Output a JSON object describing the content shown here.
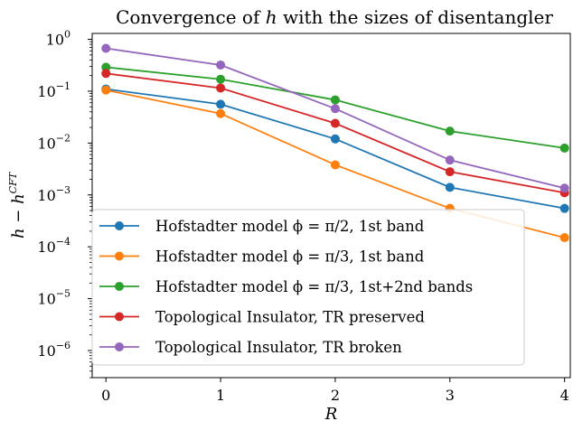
{
  "chart_data": {
    "type": "line",
    "title": "Convergence of h with the sizes of disentangler",
    "title_parts": {
      "before": "Convergence of ",
      "var": "h",
      "after": " with the sizes of disentangler"
    },
    "xlabel": "R",
    "ylabel": {
      "main": "h − h",
      "sup": "CFT"
    },
    "x": [
      0,
      1,
      2,
      3,
      4
    ],
    "xlim": [
      -0.12,
      4.05
    ],
    "ylim": [
      3e-07,
      1.3
    ],
    "yscale": "log",
    "x_ticks": [
      "0",
      "1",
      "2",
      "3",
      "4"
    ],
    "y_ticks": [
      {
        "value": 1,
        "exp": "0"
      },
      {
        "value": 0.1,
        "exp": "−1"
      },
      {
        "value": 0.01,
        "exp": "−2"
      },
      {
        "value": 0.001,
        "exp": "−3"
      },
      {
        "value": 0.0001,
        "exp": "−4"
      },
      {
        "value": 1e-05,
        "exp": "−5"
      },
      {
        "value": 1e-06,
        "exp": "−6"
      }
    ],
    "grid": false,
    "legend_position": "lower-left",
    "series": [
      {
        "name": "Hofstadter model ϕ = π/2, 1st band",
        "color": "#1f77b4",
        "values": [
          0.11,
          0.056,
          0.012,
          0.0014,
          0.00055
        ]
      },
      {
        "name": "Hofstadter model ϕ = π/3, 1st band",
        "color": "#ff7f0e",
        "values": [
          0.105,
          0.037,
          0.0038,
          0.00055,
          0.00015
        ]
      },
      {
        "name": "Hofstadter model ϕ = π/3, 1st+2nd bands",
        "color": "#2ca02c",
        "values": [
          0.29,
          0.17,
          0.068,
          0.017,
          0.008
        ]
      },
      {
        "name": "Topological Insulator, TR preserved",
        "color": "#d62728",
        "values": [
          0.22,
          0.115,
          0.024,
          0.0028,
          0.0011
        ]
      },
      {
        "name": "Topological Insulator, TR broken",
        "color": "#9467bd",
        "values": [
          0.67,
          0.32,
          0.046,
          0.0047,
          0.00135
        ]
      }
    ]
  }
}
